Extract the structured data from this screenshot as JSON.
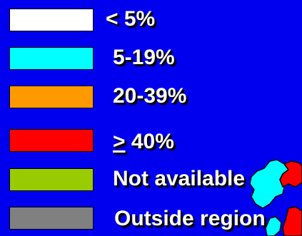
{
  "legend": {
    "items": [
      {
        "label": "< 5%",
        "color": "#ffffff"
      },
      {
        "label": "5-19%",
        "color": "#00ffff"
      },
      {
        "label": "20-39%",
        "color": "#ff9900"
      },
      {
        "symbol": ">",
        "label": " 40%",
        "color": "#ff0000"
      },
      {
        "label": "Not available",
        "color": "#99cc00"
      },
      {
        "label": "Outside region",
        "color": "#808080"
      }
    ]
  },
  "map": {
    "background_color": "#0000ee",
    "region_colors": [
      "#00ffff",
      "#ff0000"
    ]
  }
}
